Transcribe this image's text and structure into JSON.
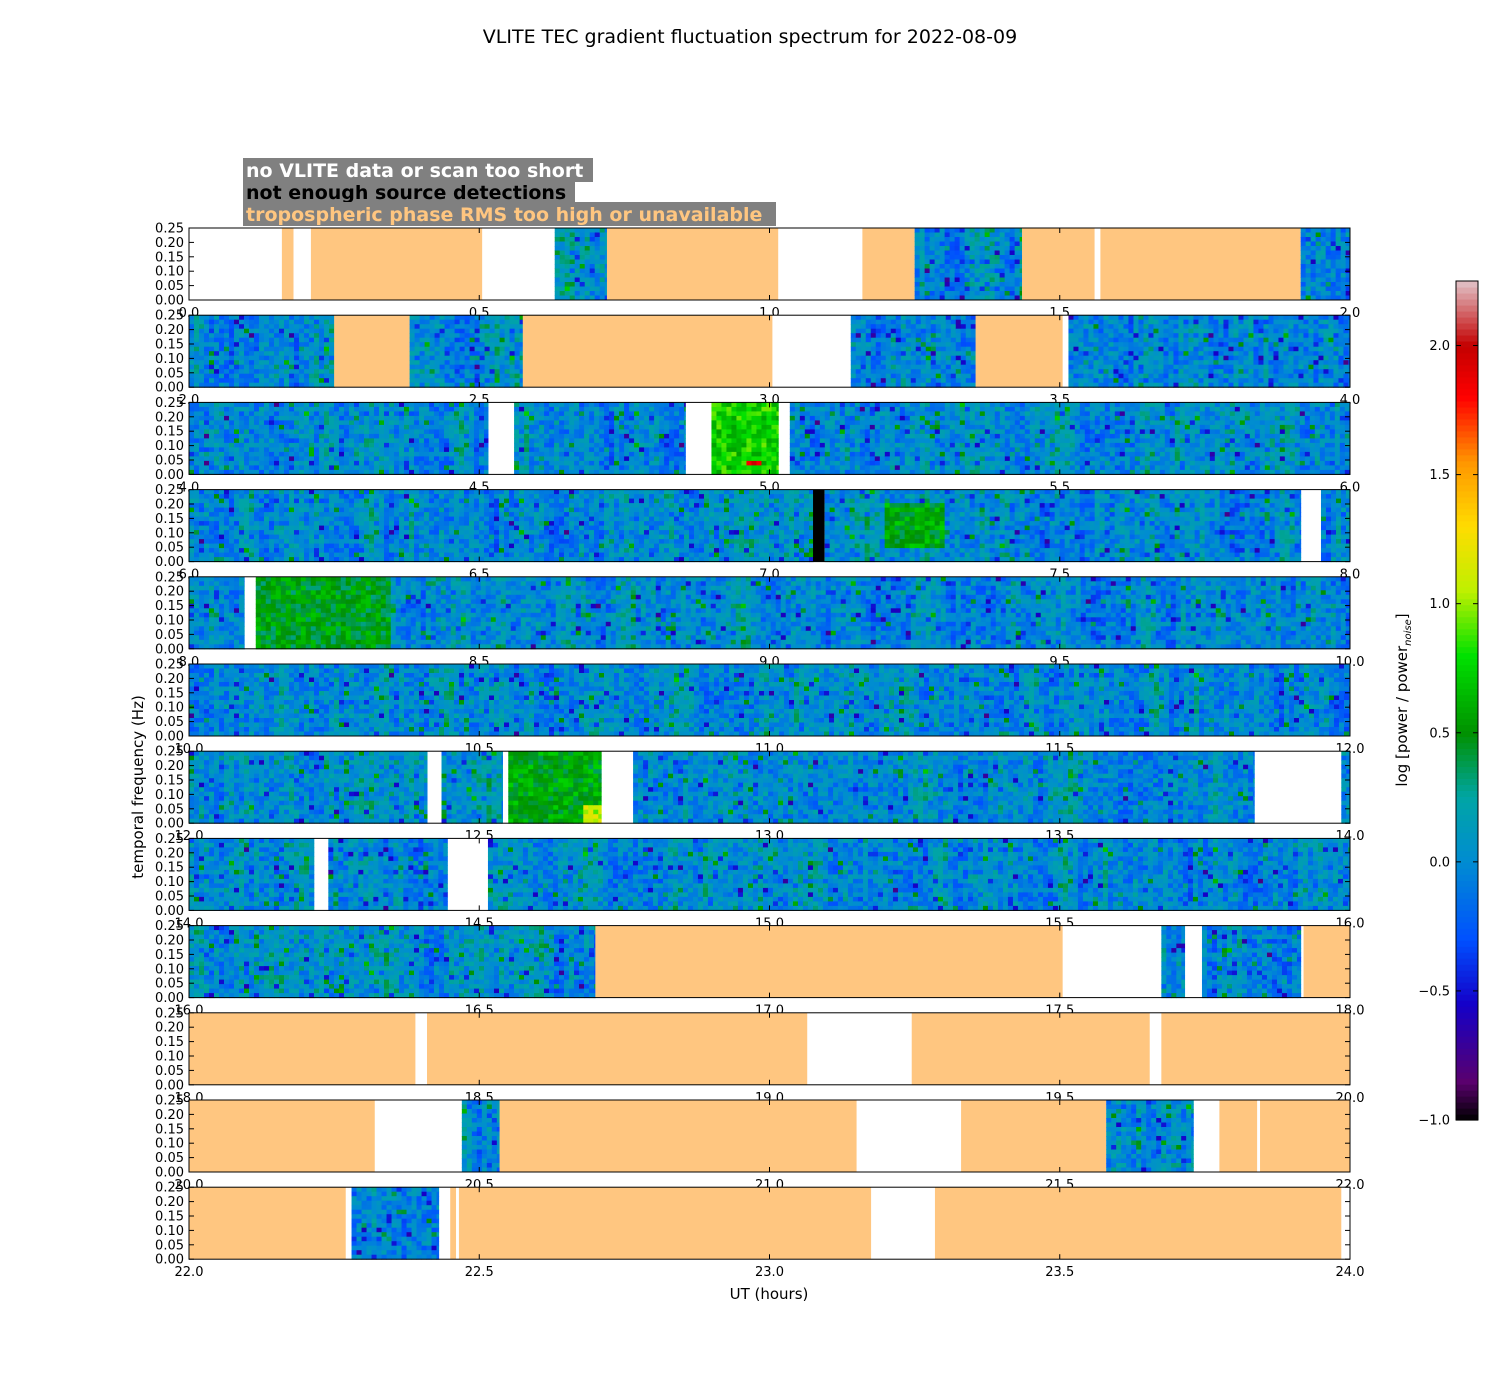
{
  "chart_data": {
    "type": "heatmap",
    "title": "VLITE TEC gradient fluctuation spectrum for 2022-08-09",
    "xlabel": "UT (hours)",
    "ylabel": "temporal frequency (Hz)",
    "ylim": [
      0,
      0.25
    ],
    "y_ticks": [
      "0.00",
      "0.05",
      "0.10",
      "0.15",
      "0.20",
      "0.25"
    ],
    "colorbar": {
      "label_main": "log [power / power",
      "label_sub": "noise",
      "label_end": "]",
      "range": [
        -1.0,
        2.25
      ],
      "ticks": [
        "−1.0",
        "−0.5",
        "0.0",
        "0.5",
        "1.0",
        "1.5",
        "2.0"
      ],
      "tick_values": [
        -1.0,
        -0.5,
        0.0,
        0.5,
        1.0,
        1.5,
        2.0
      ]
    },
    "legend": {
      "no_data": {
        "label": "no VLITE data or scan too short",
        "color": "#ffffff"
      },
      "few_detections": {
        "label": "not enough source detections",
        "color": "#000000"
      },
      "tropo": {
        "label": "tropospheric phase RMS too high or unavailable",
        "color": "#ffc680"
      },
      "box_color": "#808080"
    },
    "panels": [
      {
        "x_range": [
          0,
          2
        ],
        "x_ticks": [
          "0.0",
          "0.5",
          "1.0",
          "1.5",
          "2.0"
        ],
        "segments": [
          [
            0,
            0.16,
            "nodata"
          ],
          [
            0.16,
            0.18,
            "tropo"
          ],
          [
            0.18,
            0.21,
            "nodata"
          ],
          [
            0.21,
            0.505,
            "tropo"
          ],
          [
            0.505,
            0.63,
            "nodata"
          ],
          [
            0.63,
            0.72,
            "data"
          ],
          [
            0.72,
            1.015,
            "tropo"
          ],
          [
            1.015,
            1.16,
            "nodata"
          ],
          [
            1.16,
            1.25,
            "tropo"
          ],
          [
            1.25,
            1.435,
            "data"
          ],
          [
            1.435,
            1.56,
            "tropo"
          ],
          [
            1.56,
            1.57,
            "nodata"
          ],
          [
            1.57,
            1.915,
            "tropo"
          ],
          [
            1.915,
            2,
            "data"
          ]
        ]
      },
      {
        "x_range": [
          2,
          4
        ],
        "x_ticks": [
          "2.0",
          "2.5",
          "3.0",
          "3.5",
          "4.0"
        ],
        "segments": [
          [
            2,
            2.25,
            "data"
          ],
          [
            2.25,
            2.38,
            "tropo"
          ],
          [
            2.38,
            2.575,
            "data"
          ],
          [
            2.575,
            3.005,
            "tropo"
          ],
          [
            3.005,
            3.14,
            "nodata"
          ],
          [
            3.14,
            3.355,
            "data"
          ],
          [
            3.355,
            3.505,
            "tropo"
          ],
          [
            3.505,
            3.515,
            "nodata"
          ],
          [
            3.515,
            4,
            "data"
          ]
        ]
      },
      {
        "x_range": [
          4,
          6
        ],
        "x_ticks": [
          "4.0",
          "4.5",
          "5.0",
          "5.5",
          "6.0"
        ],
        "segments": [
          [
            4,
            4.515,
            "data"
          ],
          [
            4.515,
            4.56,
            "nodata"
          ],
          [
            4.56,
            4.855,
            "data"
          ],
          [
            4.855,
            4.9,
            "nodata"
          ],
          [
            4.9,
            5.015,
            "data"
          ],
          [
            5.015,
            5.035,
            "nodata"
          ],
          [
            5.035,
            6,
            "data"
          ]
        ]
      },
      {
        "x_range": [
          6,
          8
        ],
        "x_ticks": [
          "6.0",
          "6.5",
          "7.0",
          "7.5",
          "8.0"
        ],
        "segments": [
          [
            6,
            7.075,
            "data"
          ],
          [
            7.075,
            7.095,
            "fewdet"
          ],
          [
            7.095,
            7.915,
            "data"
          ],
          [
            7.915,
            7.95,
            "nodata"
          ],
          [
            7.95,
            8,
            "data"
          ]
        ]
      },
      {
        "x_range": [
          8,
          10
        ],
        "x_ticks": [
          "8.0",
          "8.5",
          "9.0",
          "9.5",
          "10.0"
        ],
        "segments": [
          [
            8,
            8.095,
            "data"
          ],
          [
            8.095,
            8.115,
            "nodata"
          ],
          [
            8.115,
            10,
            "data"
          ]
        ]
      },
      {
        "x_range": [
          10,
          12
        ],
        "x_ticks": [
          "10.0",
          "10.5",
          "11.0",
          "11.5",
          "12.0"
        ],
        "segments": [
          [
            10,
            12,
            "data"
          ]
        ]
      },
      {
        "x_range": [
          12,
          14
        ],
        "x_ticks": [
          "12.0",
          "12.5",
          "13.0",
          "13.5",
          "14.0"
        ],
        "segments": [
          [
            12,
            12.41,
            "data"
          ],
          [
            12.41,
            12.435,
            "nodata"
          ],
          [
            12.435,
            12.54,
            "data"
          ],
          [
            12.54,
            12.55,
            "nodata"
          ],
          [
            12.55,
            12.71,
            "data"
          ],
          [
            12.71,
            12.765,
            "nodata"
          ],
          [
            12.765,
            13.835,
            "data"
          ],
          [
            13.835,
            13.985,
            "nodata"
          ],
          [
            13.985,
            14,
            "data"
          ]
        ]
      },
      {
        "x_range": [
          14,
          16
        ],
        "x_ticks": [
          "14.0",
          "14.5",
          "15.0",
          "15.5",
          "16.0"
        ],
        "segments": [
          [
            14,
            14.215,
            "data"
          ],
          [
            14.215,
            14.24,
            "nodata"
          ],
          [
            14.24,
            14.445,
            "data"
          ],
          [
            14.445,
            14.515,
            "nodata"
          ],
          [
            14.515,
            16,
            "data"
          ]
        ]
      },
      {
        "x_range": [
          16,
          18
        ],
        "x_ticks": [
          "16.0",
          "16.5",
          "17.0",
          "17.5",
          "18.0"
        ],
        "segments": [
          [
            16,
            16.7,
            "data"
          ],
          [
            16.7,
            17.505,
            "tropo"
          ],
          [
            17.505,
            17.675,
            "nodata"
          ],
          [
            17.675,
            17.715,
            "data"
          ],
          [
            17.715,
            17.745,
            "nodata"
          ],
          [
            17.745,
            17.915,
            "data"
          ],
          [
            17.915,
            17.92,
            "nodata"
          ],
          [
            17.92,
            18,
            "tropo"
          ]
        ]
      },
      {
        "x_range": [
          18,
          20
        ],
        "x_ticks": [
          "18.0",
          "18.5",
          "19.0",
          "19.5",
          "20.0"
        ],
        "segments": [
          [
            18,
            18.39,
            "tropo"
          ],
          [
            18.39,
            18.41,
            "nodata"
          ],
          [
            18.41,
            19.065,
            "tropo"
          ],
          [
            19.065,
            19.245,
            "nodata"
          ],
          [
            19.245,
            19.655,
            "tropo"
          ],
          [
            19.655,
            19.675,
            "nodata"
          ],
          [
            19.675,
            20,
            "tropo"
          ]
        ]
      },
      {
        "x_range": [
          20,
          22
        ],
        "x_ticks": [
          "20.0",
          "20.5",
          "21.0",
          "21.5",
          "22.0"
        ],
        "segments": [
          [
            20,
            20.32,
            "tropo"
          ],
          [
            20.32,
            20.47,
            "nodata"
          ],
          [
            20.47,
            20.535,
            "data"
          ],
          [
            20.535,
            21.15,
            "tropo"
          ],
          [
            21.15,
            21.33,
            "nodata"
          ],
          [
            21.33,
            21.58,
            "tropo"
          ],
          [
            21.58,
            21.73,
            "data"
          ],
          [
            21.73,
            21.775,
            "nodata"
          ],
          [
            21.775,
            21.84,
            "tropo"
          ],
          [
            21.84,
            21.845,
            "nodata"
          ],
          [
            21.845,
            22,
            "tropo"
          ]
        ]
      },
      {
        "x_range": [
          22,
          24
        ],
        "x_ticks": [
          "22.0",
          "22.5",
          "23.0",
          "23.5",
          "24.0"
        ],
        "segments": [
          [
            22,
            22.27,
            "tropo"
          ],
          [
            22.27,
            22.28,
            "nodata"
          ],
          [
            22.28,
            22.43,
            "data"
          ],
          [
            22.43,
            22.45,
            "nodata"
          ],
          [
            22.45,
            22.46,
            "tropo"
          ],
          [
            22.46,
            22.465,
            "nodata"
          ],
          [
            22.465,
            23.175,
            "tropo"
          ],
          [
            23.175,
            23.285,
            "nodata"
          ],
          [
            23.285,
            23.985,
            "tropo"
          ],
          [
            23.985,
            24,
            "nodata"
          ]
        ]
      }
    ],
    "hotspots": [
      {
        "panel": 2,
        "x": [
          4.9,
          5.015
        ],
        "y": [
          0.0,
          0.25
        ],
        "level": 0.75
      },
      {
        "panel": 2,
        "x": [
          4.96,
          4.99
        ],
        "y": [
          0.025,
          0.04
        ],
        "level": 1.8
      },
      {
        "panel": 6,
        "x": [
          12.55,
          12.71
        ],
        "y": [
          0.0,
          0.25
        ],
        "level": 0.55
      },
      {
        "panel": 6,
        "x": [
          12.68,
          12.71
        ],
        "y": [
          0.0,
          0.06
        ],
        "level": 1.1
      },
      {
        "panel": 4,
        "x": [
          8.115,
          8.35
        ],
        "y": [
          0.0,
          0.25
        ],
        "level": 0.5
      },
      {
        "panel": 3,
        "x": [
          7.2,
          7.3
        ],
        "y": [
          0.05,
          0.2
        ],
        "level": 0.55
      }
    ]
  }
}
